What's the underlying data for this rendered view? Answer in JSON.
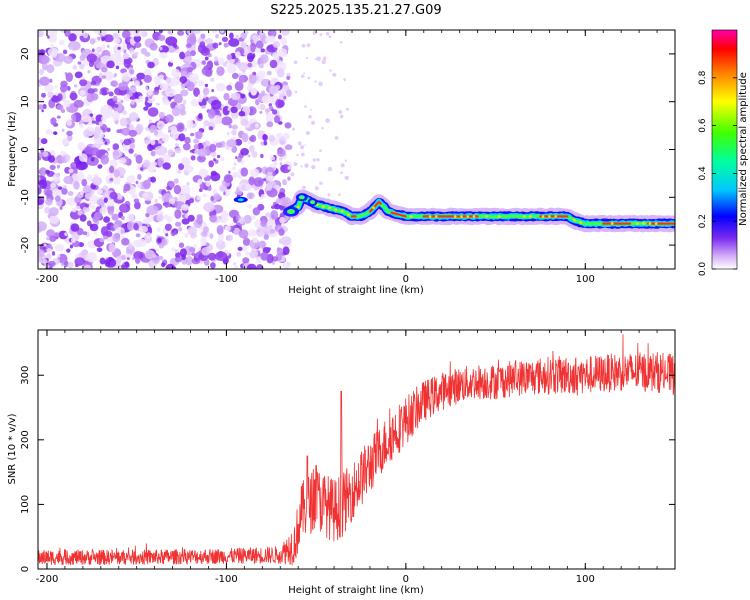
{
  "title": "S225.2025.135.21.27.G09",
  "chart_data": [
    {
      "type": "heatmap",
      "name": "spectrogram",
      "xlabel": "Height of straight line (km)",
      "ylabel": "Frequency (Hz)",
      "xlim": [
        -205,
        150
      ],
      "ylim": [
        -25,
        25
      ],
      "x_ticks": [
        -200,
        -100,
        0,
        100
      ],
      "y_ticks": [
        -20,
        -10,
        0,
        10,
        20
      ],
      "noise_region_x": [
        -205,
        -65
      ],
      "signal_track": {
        "x": [
          -65,
          -62,
          -60,
          -58,
          -55,
          -52,
          -50,
          -45,
          -40,
          -35,
          -30,
          -25,
          -20,
          -15,
          -12,
          -10,
          -5,
          0,
          10,
          20,
          30,
          40,
          50,
          60,
          70,
          80,
          90,
          95,
          100,
          110,
          120,
          130,
          140,
          150
        ],
        "freq": [
          -13,
          -12.5,
          -12,
          -10,
          -10.5,
          -11,
          -11.5,
          -12,
          -12.5,
          -13,
          -14,
          -14,
          -13,
          -11,
          -12,
          -13,
          -13.5,
          -14,
          -14,
          -14,
          -14,
          -14,
          -14,
          -14,
          -14,
          -14,
          -14,
          -15,
          -15.5,
          -15.5,
          -15.5,
          -15.5,
          -15.5,
          -15.5
        ]
      },
      "colorbar": {
        "label": "Normalized spectral amplitude",
        "ticks": [
          "0.0",
          "0.2",
          "0.4",
          "0.6",
          "0.8"
        ],
        "tick_values": [
          0.0,
          0.2,
          0.4,
          0.6,
          0.8
        ],
        "range": [
          0,
          1
        ]
      }
    },
    {
      "type": "line",
      "name": "snr",
      "xlabel": "Height of straight line (km)",
      "ylabel": "SNR (10 * v/v)",
      "xlim": [
        -205,
        150
      ],
      "ylim": [
        0,
        370
      ],
      "x_ticks": [
        -200,
        -100,
        0,
        100
      ],
      "y_ticks": [
        0,
        100,
        200,
        300
      ],
      "color": "#f03232",
      "envelope": {
        "x": [
          -205,
          -150,
          -100,
          -70,
          -62,
          -58,
          -50,
          -45,
          -40,
          -35,
          -30,
          -25,
          -20,
          -15,
          -10,
          -5,
          0,
          5,
          10,
          20,
          30,
          40,
          50,
          60,
          80,
          100,
          120,
          140,
          150
        ],
        "mean": [
          18,
          18,
          20,
          22,
          40,
          90,
          110,
          100,
          90,
          100,
          120,
          140,
          160,
          180,
          200,
          215,
          230,
          245,
          260,
          275,
          285,
          290,
          290,
          295,
          300,
          300,
          305,
          305,
          300
        ],
        "noise": [
          12,
          12,
          12,
          14,
          35,
          45,
          50,
          50,
          50,
          50,
          45,
          45,
          45,
          40,
          40,
          40,
          38,
          35,
          32,
          30,
          28,
          28,
          28,
          28,
          30,
          30,
          30,
          32,
          32
        ]
      },
      "spikes": [
        {
          "x": -36,
          "y": 275
        },
        {
          "x": -55,
          "y": 175
        },
        {
          "x": -50,
          "y": 160
        }
      ]
    }
  ]
}
